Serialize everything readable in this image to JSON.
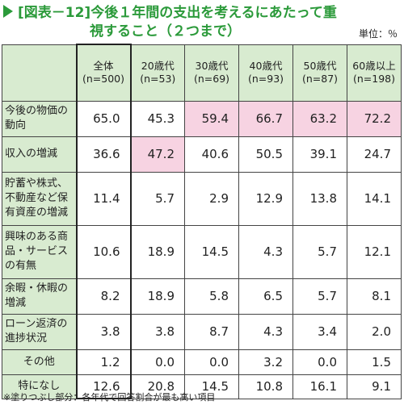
{
  "title": {
    "line1": "[図表－12]今後１年間の支出を考えるにあたって重",
    "line2": "視すること（２つまで）",
    "unit": "単位：％"
  },
  "columns": [
    {
      "name": "全体",
      "n": "(n=500)"
    },
    {
      "name": "20歳代",
      "n": "(n=53)"
    },
    {
      "name": "30歳代",
      "n": "(n=69)"
    },
    {
      "name": "40歳代",
      "n": "(n=93)"
    },
    {
      "name": "50歳代",
      "n": "(n=87)"
    },
    {
      "name": "60歳以上",
      "n": "(n=198)"
    }
  ],
  "rows": [
    {
      "label": "今後の物価の動向",
      "values": [
        "65.0",
        "45.3",
        "59.4",
        "66.7",
        "63.2",
        "72.2"
      ],
      "highlight": [
        false,
        false,
        true,
        true,
        true,
        true
      ]
    },
    {
      "label": "収入の増減",
      "values": [
        "36.6",
        "47.2",
        "40.6",
        "50.5",
        "39.1",
        "24.7"
      ],
      "highlight": [
        false,
        true,
        false,
        false,
        false,
        false
      ]
    },
    {
      "label": "貯蓄や株式、不動産など保有資産の増減",
      "values": [
        "11.4",
        "5.7",
        "2.9",
        "12.9",
        "13.8",
        "14.1"
      ],
      "highlight": [
        false,
        false,
        false,
        false,
        false,
        false
      ]
    },
    {
      "label": "興味のある商品・サービスの有無",
      "values": [
        "10.6",
        "18.9",
        "14.5",
        "4.3",
        "5.7",
        "12.1"
      ],
      "highlight": [
        false,
        false,
        false,
        false,
        false,
        false
      ]
    },
    {
      "label": "余暇・休暇の増減",
      "values": [
        "8.2",
        "18.9",
        "5.8",
        "6.5",
        "5.7",
        "8.1"
      ],
      "highlight": [
        false,
        false,
        false,
        false,
        false,
        false
      ]
    },
    {
      "label": "ローン返済の進捗状況",
      "values": [
        "3.8",
        "3.8",
        "8.7",
        "4.3",
        "3.4",
        "2.0"
      ],
      "highlight": [
        false,
        false,
        false,
        false,
        false,
        false
      ]
    },
    {
      "label": "その他",
      "values": [
        "1.2",
        "0.0",
        "0.0",
        "3.2",
        "0.0",
        "1.5"
      ],
      "highlight": [
        false,
        false,
        false,
        false,
        false,
        false
      ]
    },
    {
      "label": "特になし",
      "values": [
        "12.6",
        "20.8",
        "14.5",
        "10.8",
        "16.1",
        "9.1"
      ],
      "highlight": [
        false,
        false,
        false,
        false,
        false,
        false
      ]
    }
  ],
  "footnote": "※塗りつぶし部分：各年代で回答割合が最も高い項目",
  "colors": {
    "accent": "#2b9a3a",
    "header_bg": "#d8ebd0",
    "highlight_bg": "#f7d3e2"
  }
}
